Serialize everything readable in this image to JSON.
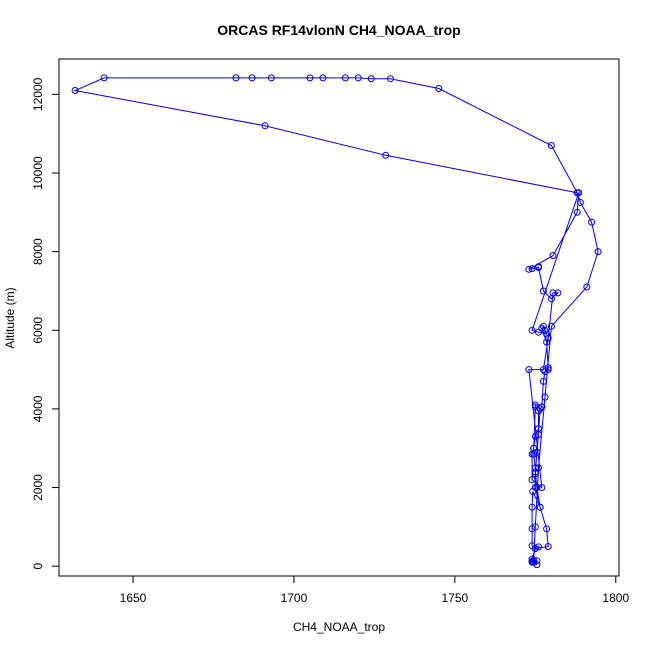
{
  "chart_data": {
    "type": "line",
    "title": "ORCAS RF14vlonN CH4_NOAA_trop",
    "xlabel": "CH4_NOAA_trop",
    "ylabel": "Altitude (m)",
    "xlim": [
      1627,
      1801
    ],
    "ylim": [
      -250,
      12900
    ],
    "x_ticks": [
      1650,
      1700,
      1750,
      1800
    ],
    "y_ticks": [
      0,
      2000,
      4000,
      6000,
      8000,
      10000,
      12000
    ],
    "grid": false,
    "legend": "none",
    "color": "#0000ff",
    "markers": "open-circle",
    "series": [
      {
        "x": [
          1775.5,
          1774.5,
          1774.0,
          1775.5,
          1774.0,
          1775.0,
          1776.0,
          1774.0,
          1774.0,
          1774.0,
          1774.2,
          1776.5,
          1775.0,
          1775.0,
          1775.5,
          1776.0,
          1776.5,
          1775.0,
          1775.0,
          1774.5,
          1774.0,
          1774.0,
          1777.0,
          1773.0,
          1777.5,
          1779.0,
          1780.5,
          1782.0,
          1780.0,
          1777.5,
          1776.0,
          1776.0,
          1776.0,
          1774.0,
          1773.0,
          1780.5,
          1788.0,
          1788.5,
          1774.0,
          1776.0,
          1778.5,
          1778.0,
          1777.5,
          1777.0,
          1778.5,
          1779.0,
          1779.0,
          1778.0,
          1777.5,
          1777.0,
          1777.0,
          1776.0,
          1776.0,
          1775.0,
          1774.5,
          1774.5,
          1775.0,
          1775.0,
          1775.5,
          1776.5,
          1778.5,
          1779.0,
          1775.0,
          1774.0,
          1774.0,
          1774.5,
          1775.0,
          1776.0,
          1778.0,
          1780.0,
          1791.0,
          1794.5,
          1792.5,
          1789.0,
          1788.0,
          1780.0,
          1745.0,
          1730.0,
          1724.0,
          1720.0,
          1716.0,
          1709.0,
          1705.0,
          1693.0,
          1687.0,
          1682.0,
          1641.0,
          1632.0,
          1691.0,
          1728.5,
          1788.0
        ],
        "y": [
          40,
          100,
          120,
          140,
          180,
          450,
          490,
          520,
          950,
          1500,
          1900,
          1500,
          2000,
          2350,
          2900,
          3350,
          4000,
          4100,
          4050,
          3000,
          2850,
          2200,
          2000,
          5000,
          5000,
          5800,
          6950,
          6950,
          6800,
          7000,
          7600,
          7620,
          7600,
          7570,
          7550,
          7900,
          9000,
          9500,
          6000,
          5950,
          5900,
          6000,
          6100,
          6050,
          5700,
          5050,
          5000,
          4950,
          4700,
          4050,
          4050,
          3950,
          3500,
          3300,
          3000,
          2850,
          2500,
          2400,
          2000,
          1500,
          950,
          500,
          450,
          100,
          120,
          150,
          1000,
          2500,
          4300,
          6100,
          7100,
          8000,
          8750,
          9250,
          9500,
          10700,
          12150,
          12400,
          12400,
          12420,
          12420,
          12420,
          12420,
          12420,
          12420,
          12420,
          12420,
          12100,
          11200,
          10450,
          9500
        ]
      }
    ]
  }
}
